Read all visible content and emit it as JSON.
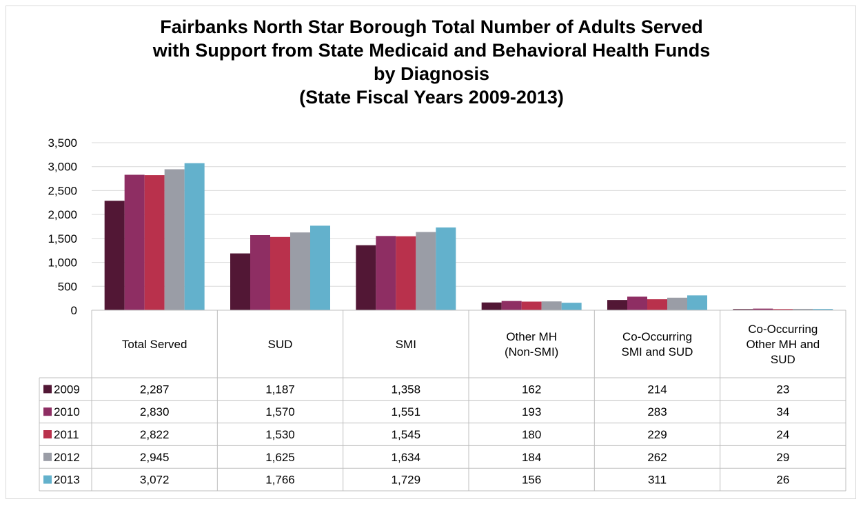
{
  "chart_data": {
    "type": "bar",
    "title": [
      "Fairbanks North Star Borough Total Number of Adults Served",
      "with Support from State Medicaid and Behavioral Health Funds",
      "by Diagnosis",
      "(State Fiscal Years 2009-2013)"
    ],
    "categories": [
      [
        "Total Served"
      ],
      [
        "SUD"
      ],
      [
        "SMI"
      ],
      [
        "Other MH",
        "(Non-SMI)"
      ],
      [
        "Co-Occurring",
        "SMI and SUD"
      ],
      [
        "Co-Occurring",
        "Other MH and",
        "SUD"
      ]
    ],
    "yticks": [
      "0",
      "500",
      "1,000",
      "1,500",
      "2,000",
      "2,500",
      "3,000",
      "3,500"
    ],
    "ylim": [
      0,
      3500
    ],
    "grid": true,
    "legend": "data-table",
    "series": [
      {
        "name": "2009",
        "color": "#521735",
        "values": [
          2287,
          1187,
          1358,
          162,
          214,
          23
        ],
        "labels": [
          "2,287",
          "1,187",
          "1,358",
          "162",
          "214",
          "23"
        ]
      },
      {
        "name": "2010",
        "color": "#8e2e63",
        "values": [
          2830,
          1570,
          1551,
          193,
          283,
          34
        ],
        "labels": [
          "2,830",
          "1,570",
          "1,551",
          "193",
          "283",
          "34"
        ]
      },
      {
        "name": "2011",
        "color": "#b9314c",
        "values": [
          2822,
          1530,
          1545,
          180,
          229,
          24
        ],
        "labels": [
          "2,822",
          "1,530",
          "1,545",
          "180",
          "229",
          "24"
        ]
      },
      {
        "name": "2012",
        "color": "#9a9da6",
        "values": [
          2945,
          1625,
          1634,
          184,
          262,
          29
        ],
        "labels": [
          "2,945",
          "1,625",
          "1,634",
          "184",
          "262",
          "29"
        ]
      },
      {
        "name": "2013",
        "color": "#63b1cc",
        "values": [
          3072,
          1766,
          1729,
          156,
          311,
          26
        ],
        "labels": [
          "3,072",
          "1,766",
          "1,729",
          "156",
          "311",
          "26"
        ]
      }
    ]
  }
}
